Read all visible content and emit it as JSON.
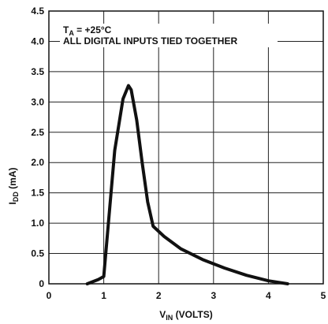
{
  "chart_data": {
    "type": "line",
    "x": [
      0.7,
      0.9,
      1.0,
      1.2,
      1.35,
      1.45,
      1.5,
      1.6,
      1.7,
      1.8,
      1.9,
      2.1,
      2.4,
      2.8,
      3.2,
      3.6,
      4.0,
      4.35
    ],
    "y": [
      0.0,
      0.07,
      0.12,
      2.2,
      3.05,
      3.27,
      3.2,
      2.7,
      2.0,
      1.35,
      0.95,
      0.78,
      0.58,
      0.4,
      0.26,
      0.14,
      0.05,
      0.0
    ],
    "xlim": [
      0,
      5
    ],
    "ylim": [
      0,
      4.5
    ],
    "xticks": [
      "0",
      "1",
      "2",
      "3",
      "4",
      "5"
    ],
    "yticks": [
      "0",
      "0.5",
      "1.0",
      "1.5",
      "2.0",
      "2.5",
      "3.0",
      "3.5",
      "4.0",
      "4.5"
    ],
    "xlabel": {
      "main": "V",
      "sub": "IN",
      "rest": " (VOLTS)"
    },
    "ylabel": {
      "main": "I",
      "sub": "DD",
      "rest": " (mA)"
    },
    "annotations": {
      "temp": {
        "main": "T",
        "sub": "A",
        "rest": " = +25°C"
      },
      "note": "ALL DIGITAL INPUTS TIED TOGETHER"
    },
    "grid": true,
    "series_color": "#111111"
  }
}
